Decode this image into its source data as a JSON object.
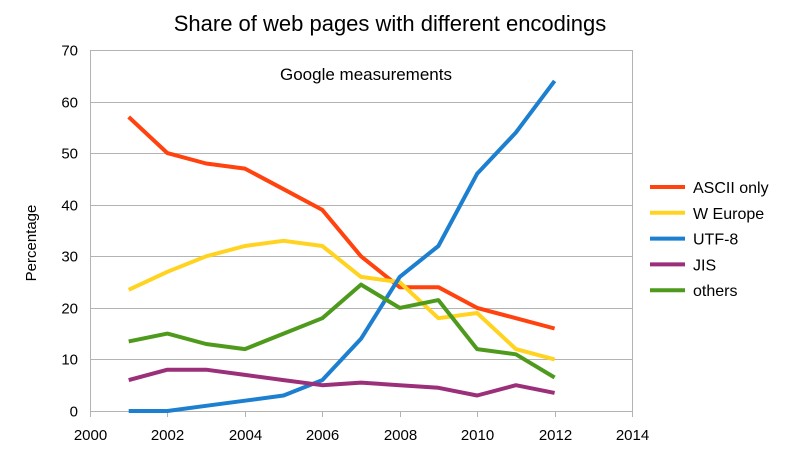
{
  "chart_data": {
    "type": "line",
    "title": "Share of web pages with different encodings",
    "annotation": "Google measurements",
    "xlabel": "",
    "ylabel": "Percentage",
    "xlim": [
      2000,
      2014
    ],
    "ylim": [
      0,
      70
    ],
    "x_ticks": [
      2000,
      2002,
      2004,
      2006,
      2008,
      2010,
      2012,
      2014
    ],
    "y_ticks": [
      0,
      10,
      20,
      30,
      40,
      50,
      60,
      70
    ],
    "grid": "horizontal",
    "legend_position": "right",
    "x": [
      2001,
      2002,
      2003,
      2004,
      2005,
      2006,
      2007,
      2008,
      2009,
      2010,
      2011,
      2012
    ],
    "series": [
      {
        "name": "ASCII only",
        "color": "#ff420e",
        "values": [
          57,
          50,
          48,
          47,
          43,
          39,
          30,
          24,
          24,
          20,
          18,
          16
        ]
      },
      {
        "name": "W Europe",
        "color": "#ffd320",
        "values": [
          23.5,
          27,
          30,
          32,
          33,
          32,
          26,
          25,
          18,
          19,
          12,
          10
        ]
      },
      {
        "name": "UTF-8",
        "color": "#1c7fcf",
        "values": [
          0,
          0,
          1,
          2,
          3,
          6,
          14,
          26,
          32,
          46,
          54,
          64
        ]
      },
      {
        "name": "JIS",
        "color": "#9c2f79",
        "values": [
          6,
          8,
          8,
          7,
          6,
          5,
          5.5,
          5,
          4.5,
          3,
          5,
          3.5
        ]
      },
      {
        "name": "others",
        "color": "#4e9a1c",
        "values": [
          13.5,
          15,
          13,
          12,
          15,
          18,
          24.5,
          20,
          21.5,
          12,
          11,
          6.5
        ]
      }
    ]
  }
}
